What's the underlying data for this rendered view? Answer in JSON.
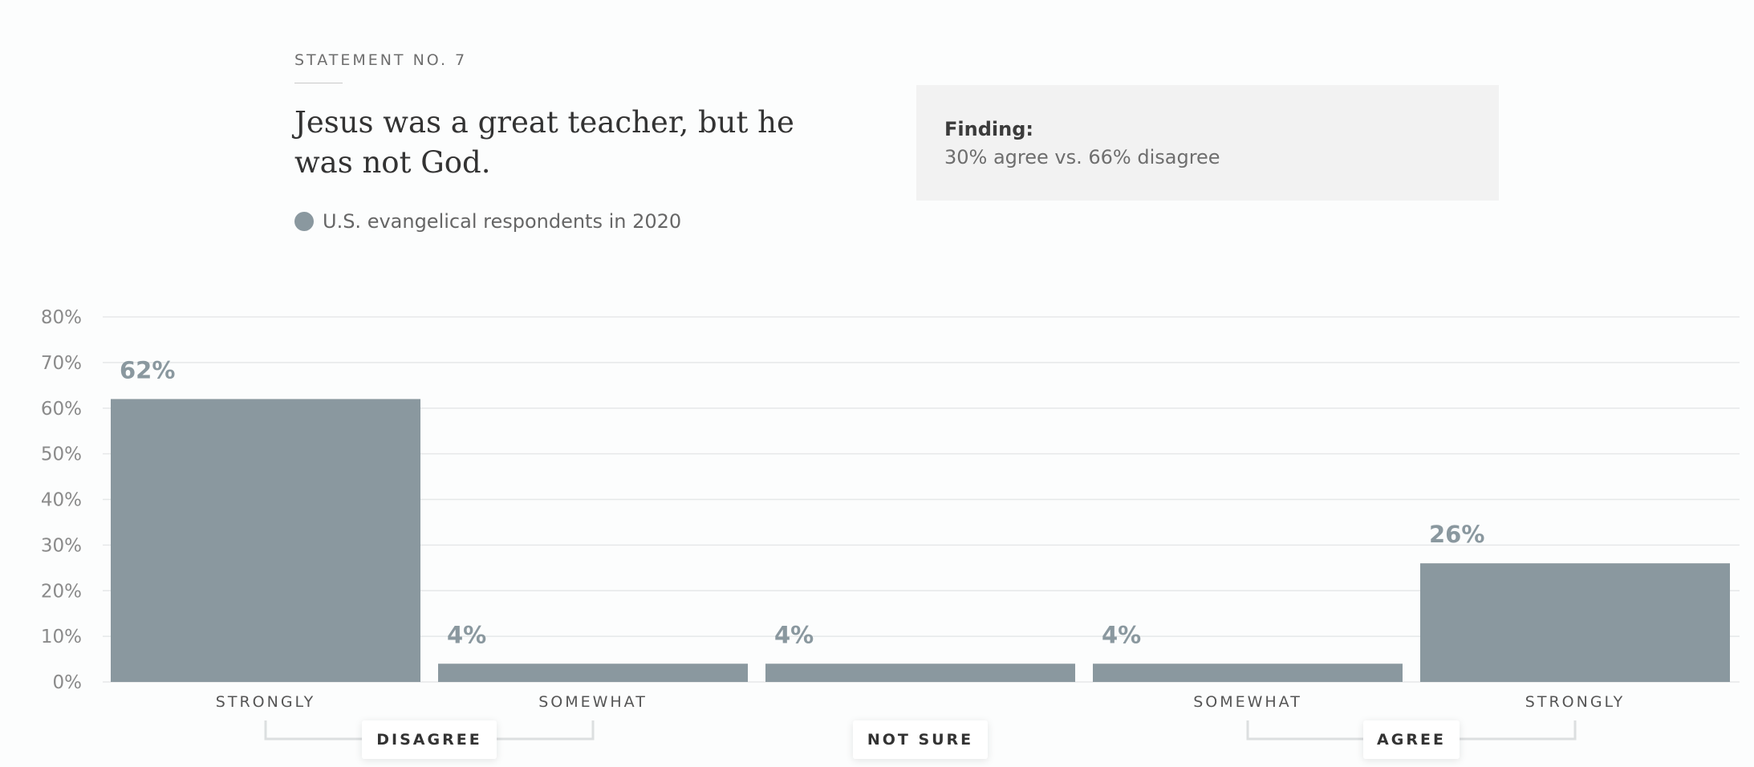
{
  "header": {
    "eyebrow": "STATEMENT NO. 7",
    "statement": "Jesus was a great teacher, but he was not God."
  },
  "legend": {
    "label": "U.S. evangelical respondents in 2020",
    "color": "#8a989f"
  },
  "finding": {
    "label": "Finding:",
    "text": "30% agree vs. 66% disagree"
  },
  "chart_data": {
    "type": "bar",
    "categories": [
      "STRONGLY",
      "SOMEWHAT",
      "",
      "SOMEWHAT",
      "STRONGLY"
    ],
    "series": [
      {
        "name": "U.S. evangelical respondents in 2020",
        "values": [
          62,
          4,
          4,
          4,
          26
        ]
      }
    ],
    "value_labels": [
      "62%",
      "4%",
      "4%",
      "4%",
      "26%"
    ],
    "ylim": [
      0,
      80
    ],
    "yticks": [
      "0%",
      "10%",
      "20%",
      "30%",
      "40%",
      "50%",
      "60%",
      "70%",
      "80%"
    ],
    "grid": true,
    "bar_color": "#8a989f",
    "groups": [
      {
        "label": "DISAGREE",
        "categories": [
          0,
          1
        ]
      },
      {
        "label": "NOT SURE",
        "categories": [
          2
        ]
      },
      {
        "label": "AGREE",
        "categories": [
          3,
          4
        ]
      }
    ]
  }
}
